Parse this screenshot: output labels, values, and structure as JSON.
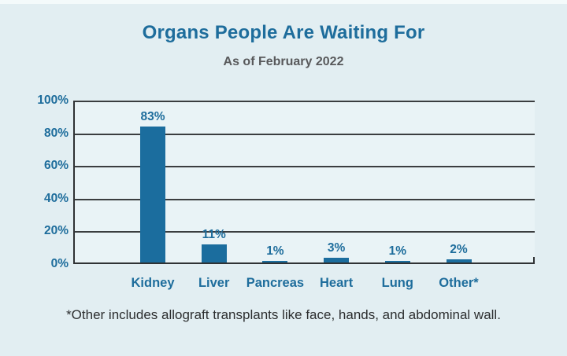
{
  "title": "Organs People Are Waiting For",
  "subtitle": "As of February 2022",
  "footnote": "*Other includes allograft transplants like face, hands, and abdominal wall.",
  "colors": {
    "page_background": "#e2eef2",
    "plot_background": "#e9f3f6",
    "bar": "#1b6d9e",
    "title_text": "#1e6d9c",
    "subtitle_text": "#58595b",
    "axis_line": "#2f3234",
    "gridline": "#3a3d3f",
    "footnote_text": "#2c2e2f"
  },
  "chart_data": {
    "type": "bar",
    "title": "Organs People Are Waiting For",
    "subtitle": "As of February 2022",
    "categories": [
      "Kidney",
      "Liver",
      "Pancreas",
      "Heart",
      "Lung",
      "Other*"
    ],
    "values": [
      83,
      11,
      1,
      3,
      1,
      2
    ],
    "value_labels": [
      "83%",
      "11%",
      "1%",
      "3%",
      "1%",
      "2%"
    ],
    "y_axis_ticks": [
      100,
      80,
      60,
      40,
      20,
      0
    ],
    "y_axis_tick_labels": [
      "100%",
      "80%",
      "60%",
      "40%",
      "20%",
      "0%"
    ],
    "xlabel": "",
    "ylabel": "",
    "ylim": [
      0,
      100
    ],
    "grid": "horizontal gridlines at every 20%",
    "legend": "none",
    "annotation": "*Other includes allograft transplants like face, hands, and abdominal wall."
  }
}
